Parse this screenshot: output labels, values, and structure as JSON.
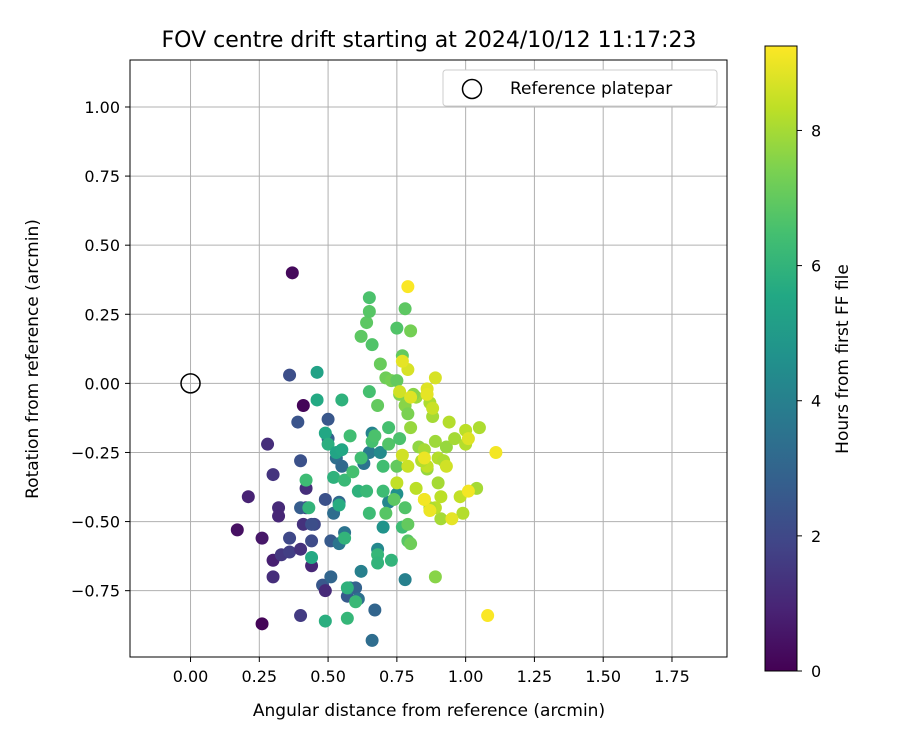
{
  "chart_data": {
    "type": "scatter",
    "title": "FOV centre drift starting at 2024/10/12 11:17:23",
    "xlabel": "Angular distance from reference (arcmin)",
    "ylabel": "Rotation from reference (arcmin)",
    "xlim": [
      -0.22,
      1.95
    ],
    "ylim": [
      -0.99,
      1.17
    ],
    "xticks": [
      "0.00",
      "0.25",
      "0.50",
      "0.75",
      "1.00",
      "1.25",
      "1.50",
      "1.75"
    ],
    "yticks": [
      "−0.75",
      "−0.50",
      "−0.25",
      "0.00",
      "0.25",
      "0.50",
      "0.75",
      "1.00"
    ],
    "grid": true,
    "legend": {
      "placement": "top-right",
      "entries": [
        "Reference platepar"
      ]
    },
    "reference_point": {
      "x": 0.0,
      "y": 0.0
    },
    "colorbar": {
      "label": "Hours from first FF file",
      "min": 0,
      "max": 9.25,
      "ticks": [
        "0",
        "2",
        "4",
        "6",
        "8"
      ],
      "colormap": "viridis"
    },
    "points": [
      {
        "x": 0.37,
        "y": 0.4,
        "c": 0.2
      },
      {
        "x": 0.41,
        "y": -0.08,
        "c": 0.1
      },
      {
        "x": 0.26,
        "y": -0.87,
        "c": 0.1
      },
      {
        "x": 0.17,
        "y": -0.53,
        "c": 0.4
      },
      {
        "x": 0.21,
        "y": -0.41,
        "c": 0.9
      },
      {
        "x": 0.28,
        "y": -0.22,
        "c": 1.2
      },
      {
        "x": 0.3,
        "y": -0.33,
        "c": 1.4
      },
      {
        "x": 0.32,
        "y": -0.45,
        "c": 1.1
      },
      {
        "x": 0.32,
        "y": -0.48,
        "c": 1.0
      },
      {
        "x": 0.26,
        "y": -0.56,
        "c": 0.6
      },
      {
        "x": 0.3,
        "y": -0.64,
        "c": 0.8
      },
      {
        "x": 0.3,
        "y": -0.7,
        "c": 1.2
      },
      {
        "x": 0.33,
        "y": -0.62,
        "c": 1.5
      },
      {
        "x": 0.36,
        "y": -0.61,
        "c": 1.7
      },
      {
        "x": 0.36,
        "y": -0.56,
        "c": 2.0
      },
      {
        "x": 0.4,
        "y": -0.6,
        "c": 1.3
      },
      {
        "x": 0.41,
        "y": -0.51,
        "c": 1.3
      },
      {
        "x": 0.4,
        "y": -0.84,
        "c": 1.6
      },
      {
        "x": 0.42,
        "y": -0.38,
        "c": 1.2
      },
      {
        "x": 0.42,
        "y": -0.45,
        "c": 1.5
      },
      {
        "x": 0.45,
        "y": -0.51,
        "c": 2.0
      },
      {
        "x": 0.44,
        "y": -0.66,
        "c": 1.0
      },
      {
        "x": 0.48,
        "y": -0.73,
        "c": 2.5
      },
      {
        "x": 0.49,
        "y": -0.75,
        "c": 1.1
      },
      {
        "x": 0.36,
        "y": 0.03,
        "c": 2.2
      },
      {
        "x": 0.39,
        "y": -0.14,
        "c": 2.4
      },
      {
        "x": 0.4,
        "y": -0.28,
        "c": 2.3
      },
      {
        "x": 0.4,
        "y": -0.45,
        "c": 2.7
      },
      {
        "x": 0.44,
        "y": -0.57,
        "c": 2.1
      },
      {
        "x": 0.44,
        "y": -0.51,
        "c": 2.2
      },
      {
        "x": 0.49,
        "y": -0.42,
        "c": 2.3
      },
      {
        "x": 0.5,
        "y": -0.13,
        "c": 2.5
      },
      {
        "x": 0.5,
        "y": -0.2,
        "c": 2.8
      },
      {
        "x": 0.51,
        "y": -0.57,
        "c": 2.6
      },
      {
        "x": 0.51,
        "y": -0.7,
        "c": 3.0
      },
      {
        "x": 0.52,
        "y": -0.47,
        "c": 3.3
      },
      {
        "x": 0.53,
        "y": -0.27,
        "c": 3.4
      },
      {
        "x": 0.54,
        "y": -0.43,
        "c": 3.1
      },
      {
        "x": 0.54,
        "y": -0.58,
        "c": 3.6
      },
      {
        "x": 0.55,
        "y": -0.3,
        "c": 3.2
      },
      {
        "x": 0.56,
        "y": -0.54,
        "c": 3.5
      },
      {
        "x": 0.57,
        "y": -0.77,
        "c": 2.6
      },
      {
        "x": 0.58,
        "y": -0.74,
        "c": 3.9
      },
      {
        "x": 0.6,
        "y": -0.74,
        "c": 2.9
      },
      {
        "x": 0.61,
        "y": -0.78,
        "c": 3.4
      },
      {
        "x": 0.62,
        "y": -0.68,
        "c": 4.0
      },
      {
        "x": 0.63,
        "y": -0.29,
        "c": 3.5
      },
      {
        "x": 0.65,
        "y": -0.25,
        "c": 3.8
      },
      {
        "x": 0.66,
        "y": -0.18,
        "c": 4.1
      },
      {
        "x": 0.66,
        "y": -0.93,
        "c": 3.3
      },
      {
        "x": 0.67,
        "y": -0.82,
        "c": 3.0
      },
      {
        "x": 0.68,
        "y": -0.6,
        "c": 4.3
      },
      {
        "x": 0.69,
        "y": -0.25,
        "c": 4.4
      },
      {
        "x": 0.7,
        "y": -0.52,
        "c": 4.7
      },
      {
        "x": 0.72,
        "y": -0.43,
        "c": 4.2
      },
      {
        "x": 0.75,
        "y": -0.4,
        "c": 4.6
      },
      {
        "x": 0.78,
        "y": -0.71,
        "c": 4.0
      },
      {
        "x": 0.46,
        "y": 0.04,
        "c": 5.3
      },
      {
        "x": 0.46,
        "y": -0.06,
        "c": 5.6
      },
      {
        "x": 0.49,
        "y": -0.18,
        "c": 5.5
      },
      {
        "x": 0.5,
        "y": -0.22,
        "c": 5.8
      },
      {
        "x": 0.52,
        "y": -0.34,
        "c": 5.9
      },
      {
        "x": 0.53,
        "y": -0.25,
        "c": 5.4
      },
      {
        "x": 0.54,
        "y": -0.44,
        "c": 5.7
      },
      {
        "x": 0.55,
        "y": -0.06,
        "c": 5.9
      },
      {
        "x": 0.55,
        "y": -0.24,
        "c": 5.5
      },
      {
        "x": 0.56,
        "y": -0.35,
        "c": 6.2
      },
      {
        "x": 0.56,
        "y": -0.56,
        "c": 6.0
      },
      {
        "x": 0.44,
        "y": -0.63,
        "c": 5.6
      },
      {
        "x": 0.49,
        "y": -0.86,
        "c": 5.8
      },
      {
        "x": 0.57,
        "y": -0.74,
        "c": 5.9
      },
      {
        "x": 0.57,
        "y": -0.85,
        "c": 6.1
      },
      {
        "x": 0.6,
        "y": -0.79,
        "c": 6.2
      },
      {
        "x": 0.43,
        "y": -0.45,
        "c": 6.0
      },
      {
        "x": 0.42,
        "y": -0.35,
        "c": 6.3
      },
      {
        "x": 0.58,
        "y": -0.19,
        "c": 6.4
      },
      {
        "x": 0.59,
        "y": -0.32,
        "c": 6.5
      },
      {
        "x": 0.61,
        "y": -0.39,
        "c": 5.9
      },
      {
        "x": 0.62,
        "y": -0.27,
        "c": 6.4
      },
      {
        "x": 0.64,
        "y": -0.39,
        "c": 6.2
      },
      {
        "x": 0.65,
        "y": -0.47,
        "c": 6.3
      },
      {
        "x": 0.66,
        "y": -0.21,
        "c": 6.5
      },
      {
        "x": 0.67,
        "y": -0.19,
        "c": 6.6
      },
      {
        "x": 0.68,
        "y": -0.62,
        "c": 6.1
      },
      {
        "x": 0.68,
        "y": -0.65,
        "c": 6.0
      },
      {
        "x": 0.7,
        "y": -0.3,
        "c": 6.4
      },
      {
        "x": 0.7,
        "y": -0.39,
        "c": 6.3
      },
      {
        "x": 0.71,
        "y": -0.47,
        "c": 6.8
      },
      {
        "x": 0.72,
        "y": -0.16,
        "c": 6.5
      },
      {
        "x": 0.72,
        "y": -0.22,
        "c": 6.7
      },
      {
        "x": 0.73,
        "y": -0.64,
        "c": 6.0
      },
      {
        "x": 0.74,
        "y": -0.42,
        "c": 6.9
      },
      {
        "x": 0.75,
        "y": -0.3,
        "c": 7.0
      },
      {
        "x": 0.76,
        "y": -0.2,
        "c": 6.6
      },
      {
        "x": 0.77,
        "y": -0.52,
        "c": 6.3
      },
      {
        "x": 0.78,
        "y": -0.45,
        "c": 6.7
      },
      {
        "x": 0.79,
        "y": -0.57,
        "c": 6.8
      },
      {
        "x": 0.79,
        "y": -0.51,
        "c": 7.0
      },
      {
        "x": 0.8,
        "y": -0.58,
        "c": 7.2
      },
      {
        "x": 0.66,
        "y": 0.14,
        "c": 6.7
      },
      {
        "x": 0.64,
        "y": 0.22,
        "c": 6.9
      },
      {
        "x": 0.65,
        "y": 0.26,
        "c": 6.8
      },
      {
        "x": 0.65,
        "y": 0.31,
        "c": 6.6
      },
      {
        "x": 0.62,
        "y": 0.17,
        "c": 6.9
      },
      {
        "x": 0.65,
        "y": -0.03,
        "c": 6.5
      },
      {
        "x": 0.68,
        "y": -0.08,
        "c": 7.0
      },
      {
        "x": 0.69,
        "y": 0.07,
        "c": 7.1
      },
      {
        "x": 0.71,
        "y": 0.02,
        "c": 7.2
      },
      {
        "x": 0.73,
        "y": 0.01,
        "c": 7.3
      },
      {
        "x": 0.75,
        "y": 0.01,
        "c": 7.0
      },
      {
        "x": 0.77,
        "y": 0.1,
        "c": 7.0
      },
      {
        "x": 0.75,
        "y": 0.2,
        "c": 6.7
      },
      {
        "x": 0.78,
        "y": 0.27,
        "c": 6.9
      },
      {
        "x": 0.8,
        "y": 0.19,
        "c": 7.3
      },
      {
        "x": 0.76,
        "y": -0.04,
        "c": 7.5
      },
      {
        "x": 0.78,
        "y": -0.08,
        "c": 7.6
      },
      {
        "x": 0.79,
        "y": -0.11,
        "c": 7.4
      },
      {
        "x": 0.8,
        "y": -0.16,
        "c": 7.8
      },
      {
        "x": 0.82,
        "y": -0.05,
        "c": 7.9
      },
      {
        "x": 0.81,
        "y": -0.04,
        "c": 7.6
      },
      {
        "x": 0.83,
        "y": -0.23,
        "c": 7.7
      },
      {
        "x": 0.85,
        "y": -0.24,
        "c": 8.0
      },
      {
        "x": 0.86,
        "y": -0.31,
        "c": 7.8
      },
      {
        "x": 0.87,
        "y": -0.07,
        "c": 8.1
      },
      {
        "x": 0.88,
        "y": -0.12,
        "c": 8.0
      },
      {
        "x": 0.89,
        "y": -0.21,
        "c": 7.9
      },
      {
        "x": 0.9,
        "y": -0.27,
        "c": 8.2
      },
      {
        "x": 0.9,
        "y": -0.36,
        "c": 8.0
      },
      {
        "x": 0.91,
        "y": -0.41,
        "c": 8.3
      },
      {
        "x": 0.92,
        "y": -0.28,
        "c": 8.1
      },
      {
        "x": 0.93,
        "y": -0.23,
        "c": 7.8
      },
      {
        "x": 0.94,
        "y": -0.14,
        "c": 8.2
      },
      {
        "x": 0.96,
        "y": -0.2,
        "c": 8.0
      },
      {
        "x": 0.98,
        "y": -0.41,
        "c": 8.4
      },
      {
        "x": 1.0,
        "y": -0.22,
        "c": 8.2
      },
      {
        "x": 1.0,
        "y": -0.17,
        "c": 8.3
      },
      {
        "x": 1.05,
        "y": -0.16,
        "c": 8.1
      },
      {
        "x": 1.04,
        "y": -0.38,
        "c": 8.0
      },
      {
        "x": 0.99,
        "y": -0.47,
        "c": 8.2
      },
      {
        "x": 0.91,
        "y": -0.49,
        "c": 8.0
      },
      {
        "x": 0.89,
        "y": -0.45,
        "c": 8.3
      },
      {
        "x": 0.87,
        "y": -0.45,
        "c": 8.1
      },
      {
        "x": 0.85,
        "y": -0.42,
        "c": 8.4
      },
      {
        "x": 0.89,
        "y": -0.7,
        "c": 7.6
      },
      {
        "x": 0.86,
        "y": -0.3,
        "c": 8.4
      },
      {
        "x": 0.84,
        "y": -0.28,
        "c": 8.2
      },
      {
        "x": 0.82,
        "y": -0.38,
        "c": 8.3
      },
      {
        "x": 0.79,
        "y": -0.3,
        "c": 8.5
      },
      {
        "x": 0.77,
        "y": -0.26,
        "c": 8.6
      },
      {
        "x": 0.75,
        "y": -0.36,
        "c": 8.4
      },
      {
        "x": 0.79,
        "y": 0.05,
        "c": 8.7
      },
      {
        "x": 0.77,
        "y": 0.08,
        "c": 8.9
      },
      {
        "x": 0.76,
        "y": -0.03,
        "c": 8.6
      },
      {
        "x": 0.86,
        "y": -0.02,
        "c": 8.8
      },
      {
        "x": 0.86,
        "y": -0.04,
        "c": 8.9
      },
      {
        "x": 0.89,
        "y": 0.02,
        "c": 8.7
      },
      {
        "x": 0.88,
        "y": -0.09,
        "c": 8.5
      },
      {
        "x": 0.8,
        "y": -0.05,
        "c": 8.8
      },
      {
        "x": 0.85,
        "y": -0.27,
        "c": 9.0
      },
      {
        "x": 0.85,
        "y": -0.42,
        "c": 9.1
      },
      {
        "x": 0.87,
        "y": -0.46,
        "c": 9.0
      },
      {
        "x": 0.95,
        "y": -0.49,
        "c": 8.9
      },
      {
        "x": 1.01,
        "y": -0.39,
        "c": 9.1
      },
      {
        "x": 1.01,
        "y": -0.2,
        "c": 8.8
      },
      {
        "x": 1.11,
        "y": -0.25,
        "c": 9.1
      },
      {
        "x": 1.08,
        "y": -0.84,
        "c": 9.2
      },
      {
        "x": 0.79,
        "y": 0.35,
        "c": 9.2
      },
      {
        "x": 0.93,
        "y": -0.3,
        "c": 8.6
      }
    ]
  }
}
